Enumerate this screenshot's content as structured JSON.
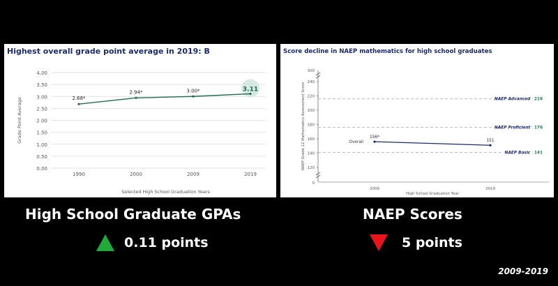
{
  "left_chart": {
    "title": "Highest overall grade point average in 2019: B",
    "chart_data": {
      "type": "line",
      "categories": [
        "1990",
        "2000",
        "2009",
        "2019"
      ],
      "values": [
        2.68,
        2.94,
        3.0,
        3.11
      ],
      "data_labels": [
        "2.68*",
        "2.94*",
        "3.00*",
        "3.11"
      ],
      "xlabel": "Selected High School Graduation Years",
      "ylabel": "Grade Point Average",
      "ylim": [
        0,
        4
      ],
      "yticks": [
        "0.00",
        "0.50",
        "1.00",
        "1.50",
        "2.00",
        "2.50",
        "3.00",
        "3.50",
        "4.00"
      ],
      "grid": true,
      "line_color": "#1f6b56"
    }
  },
  "right_chart": {
    "title": "Score decline in NAEP mathematics for high school graduates",
    "chart_data": {
      "type": "line",
      "categories": [
        "2009",
        "2019"
      ],
      "series": [
        {
          "name": "Overall",
          "values": [
            156,
            151
          ]
        }
      ],
      "data_labels": [
        "156*",
        "151"
      ],
      "xlabel": "High School Graduation Year",
      "ylabel": "NAEP Grade 12 Mathematics Assessment Score",
      "ylim": [
        120,
        240
      ],
      "axis_break": true,
      "axis_top_label": "300",
      "axis_bottom_label": "0",
      "yticks": [
        "120",
        "140",
        "160",
        "180",
        "200",
        "220",
        "240"
      ],
      "levels": [
        {
          "name": "NAEP Advanced",
          "value": 216,
          "label": "216"
        },
        {
          "name": "NAEP Proficient",
          "value": 176,
          "label": "176"
        },
        {
          "name": "NAEP Basic",
          "value": 141,
          "label": "141"
        }
      ],
      "line_color": "#1b2a6b",
      "level_label_color": "#1b2a6b",
      "level_value_color": "#1f7a5c"
    }
  },
  "captions": {
    "left_title": "High School Graduate GPAs",
    "left_change": "0.11 points",
    "right_title": "NAEP Scores",
    "right_change": "5 points",
    "footnote": "2009-2019"
  },
  "colors": {
    "up": "#1faa3a",
    "down": "#e8141b"
  }
}
